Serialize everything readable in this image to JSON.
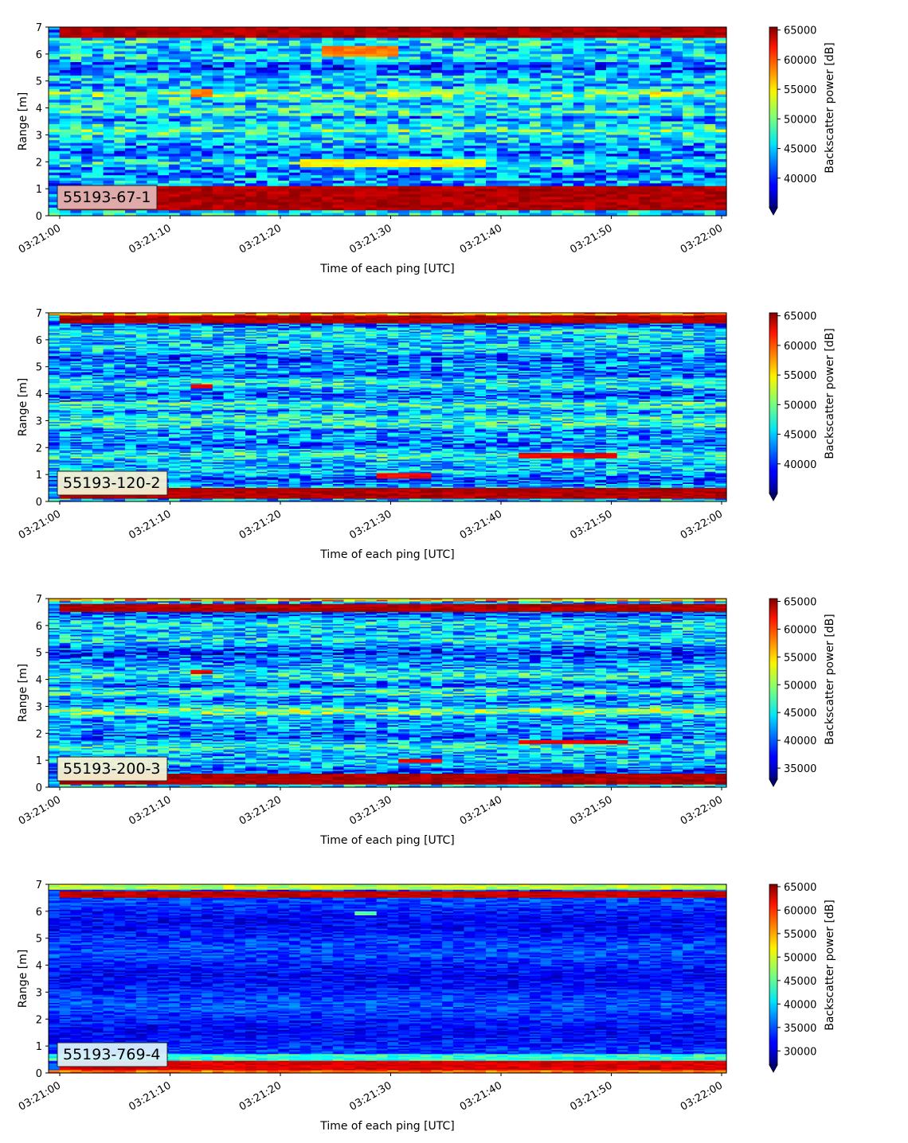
{
  "chart_data": [
    {
      "type": "heatmap",
      "label": "55193-67-1",
      "xlabel": "Time of each ping [UTC]",
      "ylabel": "Range [m]",
      "x_tick_labels": [
        "03:21:00",
        "03:21:10",
        "03:21:20",
        "03:21:30",
        "03:21:40",
        "03:21:50",
        "03:22:00"
      ],
      "y_tick_labels": [
        "0",
        "1",
        "2",
        "3",
        "4",
        "5",
        "6",
        "7"
      ],
      "xlim": [
        "03:21:00",
        "03:22:00"
      ],
      "ylim": [
        0,
        7
      ],
      "colorbar": {
        "label": "Backscatter power [dB]",
        "min": 35000,
        "max": 65500,
        "extend": "min",
        "tick_labels": [
          "40000",
          "45000",
          "50000",
          "55000",
          "60000",
          "65000"
        ]
      },
      "features": [
        {
          "range_m": [
            0.2,
            1.1
          ],
          "time": [
            "03:21:00",
            "03:22:00"
          ],
          "level": 64000
        },
        {
          "range_m": [
            6.6,
            7.0
          ],
          "time": [
            "03:21:00",
            "03:22:00"
          ],
          "level": 64000
        },
        {
          "range_m": [
            1.8,
            2.1
          ],
          "time": [
            "03:21:22",
            "03:21:38"
          ],
          "level": 54000
        },
        {
          "range_m": [
            5.9,
            6.3
          ],
          "time": [
            "03:21:24",
            "03:21:30"
          ],
          "level": 58000
        },
        {
          "range_m": [
            4.4,
            4.7
          ],
          "time": [
            "03:21:12",
            "03:21:13"
          ],
          "level": 58000
        }
      ]
    },
    {
      "type": "heatmap",
      "label": "55193-120-2",
      "xlabel": "Time of each ping [UTC]",
      "ylabel": "Range [m]",
      "x_tick_labels": [
        "03:21:00",
        "03:21:10",
        "03:21:20",
        "03:21:30",
        "03:21:40",
        "03:21:50",
        "03:22:00"
      ],
      "y_tick_labels": [
        "0",
        "1",
        "2",
        "3",
        "4",
        "5",
        "6",
        "7"
      ],
      "xlim": [
        "03:21:00",
        "03:22:00"
      ],
      "ylim": [
        0,
        7
      ],
      "colorbar": {
        "label": "Backscatter power [dB]",
        "min": 35000,
        "max": 65500,
        "extend": "min",
        "tick_labels": [
          "40000",
          "45000",
          "50000",
          "55000",
          "60000",
          "65000"
        ]
      },
      "features": [
        {
          "range_m": [
            0.1,
            0.5
          ],
          "time": [
            "03:21:00",
            "03:22:00"
          ],
          "level": 64000
        },
        {
          "range_m": [
            6.6,
            6.9
          ],
          "time": [
            "03:21:00",
            "03:22:00"
          ],
          "level": 64000
        },
        {
          "range_m": [
            1.6,
            1.8
          ],
          "time": [
            "03:21:42",
            "03:21:50"
          ],
          "level": 62000
        },
        {
          "range_m": [
            0.85,
            1.05
          ],
          "time": [
            "03:21:29",
            "03:21:33"
          ],
          "level": 62000
        },
        {
          "range_m": [
            4.2,
            4.35
          ],
          "time": [
            "03:21:12",
            "03:21:13"
          ],
          "level": 62000
        }
      ]
    },
    {
      "type": "heatmap",
      "label": "55193-200-3",
      "xlabel": "Time of each ping [UTC]",
      "ylabel": "Range [m]",
      "x_tick_labels": [
        "03:21:00",
        "03:21:10",
        "03:21:20",
        "03:21:30",
        "03:21:40",
        "03:21:50",
        "03:22:00"
      ],
      "y_tick_labels": [
        "0",
        "1",
        "2",
        "3",
        "4",
        "5",
        "6",
        "7"
      ],
      "xlim": [
        "03:21:00",
        "03:22:00"
      ],
      "ylim": [
        0,
        7
      ],
      "colorbar": {
        "label": "Backscatter power [dB]",
        "min": 33000,
        "max": 65500,
        "extend": "min",
        "tick_labels": [
          "35000",
          "40000",
          "45000",
          "50000",
          "55000",
          "60000",
          "65000"
        ]
      },
      "features": [
        {
          "range_m": [
            0.1,
            0.5
          ],
          "time": [
            "03:21:00",
            "03:22:00"
          ],
          "level": 64000
        },
        {
          "range_m": [
            6.5,
            6.8
          ],
          "time": [
            "03:21:00",
            "03:22:00"
          ],
          "level": 64000
        },
        {
          "range_m": [
            1.6,
            1.75
          ],
          "time": [
            "03:21:42",
            "03:21:51"
          ],
          "level": 62000
        },
        {
          "range_m": [
            0.9,
            1.05
          ],
          "time": [
            "03:21:31",
            "03:21:34"
          ],
          "level": 62000
        },
        {
          "range_m": [
            4.2,
            4.35
          ],
          "time": [
            "03:21:12",
            "03:21:13"
          ],
          "level": 62000
        }
      ]
    },
    {
      "type": "heatmap",
      "label": "55193-769-4",
      "xlabel": "Time of each ping [UTC]",
      "ylabel": "Range [m]",
      "x_tick_labels": [
        "03:21:00",
        "03:21:10",
        "03:21:20",
        "03:21:30",
        "03:21:40",
        "03:21:50",
        "03:22:00"
      ],
      "y_tick_labels": [
        "0",
        "1",
        "2",
        "3",
        "4",
        "5",
        "6",
        "7"
      ],
      "xlim": [
        "03:21:00",
        "03:22:00"
      ],
      "ylim": [
        0,
        7
      ],
      "colorbar": {
        "label": "Backscatter power [dB]",
        "min": 27000,
        "max": 65500,
        "extend": "min",
        "tick_labels": [
          "30000",
          "35000",
          "40000",
          "45000",
          "50000",
          "55000",
          "60000",
          "65000"
        ]
      },
      "features": [
        {
          "range_m": [
            0.1,
            0.45
          ],
          "time": [
            "03:21:00",
            "03:22:00"
          ],
          "level": 62000
        },
        {
          "range_m": [
            6.5,
            6.75
          ],
          "time": [
            "03:21:00",
            "03:22:00"
          ],
          "level": 63000
        },
        {
          "range_m": [
            5.85,
            6.0
          ],
          "time": [
            "03:21:27",
            "03:21:28"
          ],
          "level": 45000
        }
      ]
    }
  ]
}
